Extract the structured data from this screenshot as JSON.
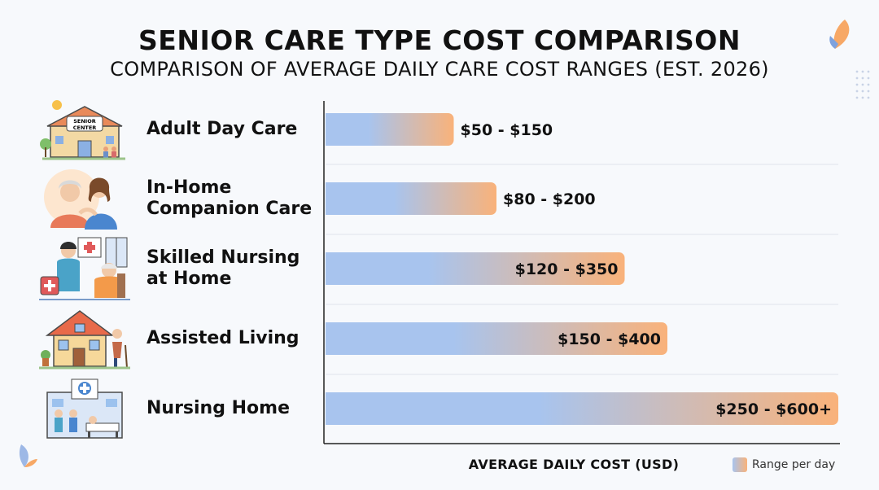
{
  "title": "SENIOR CARE TYPE COST COMPARISON",
  "subtitle": "COMPARISON OF AVERAGE DAILY CARE COST RANGES (EST. 2026)",
  "chart_data": {
    "type": "bar",
    "orientation": "horizontal",
    "title": "SENIOR CARE TYPE COST COMPARISON",
    "subtitle": "COMPARISON OF AVERAGE DAILY CARE COST RANGES (EST. 2026)",
    "categories": [
      "Adult Day Care",
      "In-Home Companion Care",
      "Skilled Nursing at Home",
      "Assisted Living",
      "Nursing Home"
    ],
    "category_lines": [
      [
        "Adult Day Care"
      ],
      [
        "In-Home",
        "Companion Care"
      ],
      [
        "Skilled Nursing",
        "at Home"
      ],
      [
        "Assisted Living"
      ],
      [
        "Nursing Home"
      ]
    ],
    "ranges": [
      [
        50,
        150
      ],
      [
        80,
        200
      ],
      [
        120,
        350
      ],
      [
        150,
        400
      ],
      [
        250,
        600
      ]
    ],
    "value_labels": [
      "$50 - $150",
      "$80 - $200",
      "$120 - $350",
      "$150 - $400",
      "$250 - $600+"
    ],
    "xlabel": "AVERAGE DAILY COST (USD)",
    "ylabel": "",
    "xlim": [
      0,
      600
    ],
    "grid": "horizontal separators",
    "legend": {
      "label": "Range per day",
      "position": "bottom-right"
    },
    "colors": {
      "low": "#a8c4ee",
      "high": "#f9b27a"
    }
  },
  "icons": [
    "senior-center-icon",
    "companion-care-icon",
    "skilled-nursing-icon",
    "assisted-living-icon",
    "nursing-home-icon"
  ]
}
